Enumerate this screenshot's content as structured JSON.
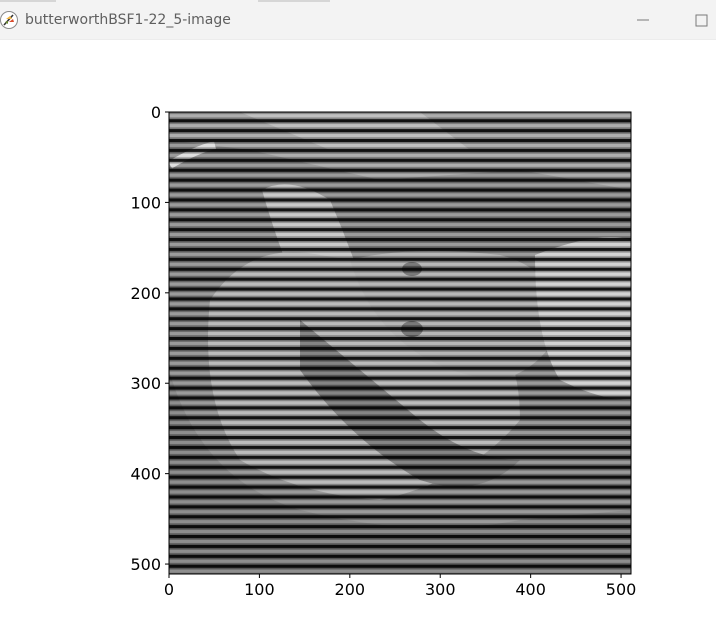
{
  "window": {
    "title": "butterworthBSF1-22_5-image",
    "icons": [
      "app-feather-icon",
      "minimize-icon",
      "maximize-icon"
    ]
  },
  "chart_data": {
    "type": "heatmap",
    "title": "",
    "xlabel": "",
    "ylabel": "",
    "xlim": [
      0,
      511
    ],
    "ylim": [
      511,
      0
    ],
    "x_ticks": [
      0,
      100,
      200,
      300,
      400,
      500
    ],
    "y_ticks": [
      0,
      100,
      200,
      300,
      400,
      500
    ],
    "grid": false,
    "colormap": "gray",
    "stripe_period": 11,
    "colors": {
      "axis": "#000000",
      "background": "#ffffff"
    }
  }
}
